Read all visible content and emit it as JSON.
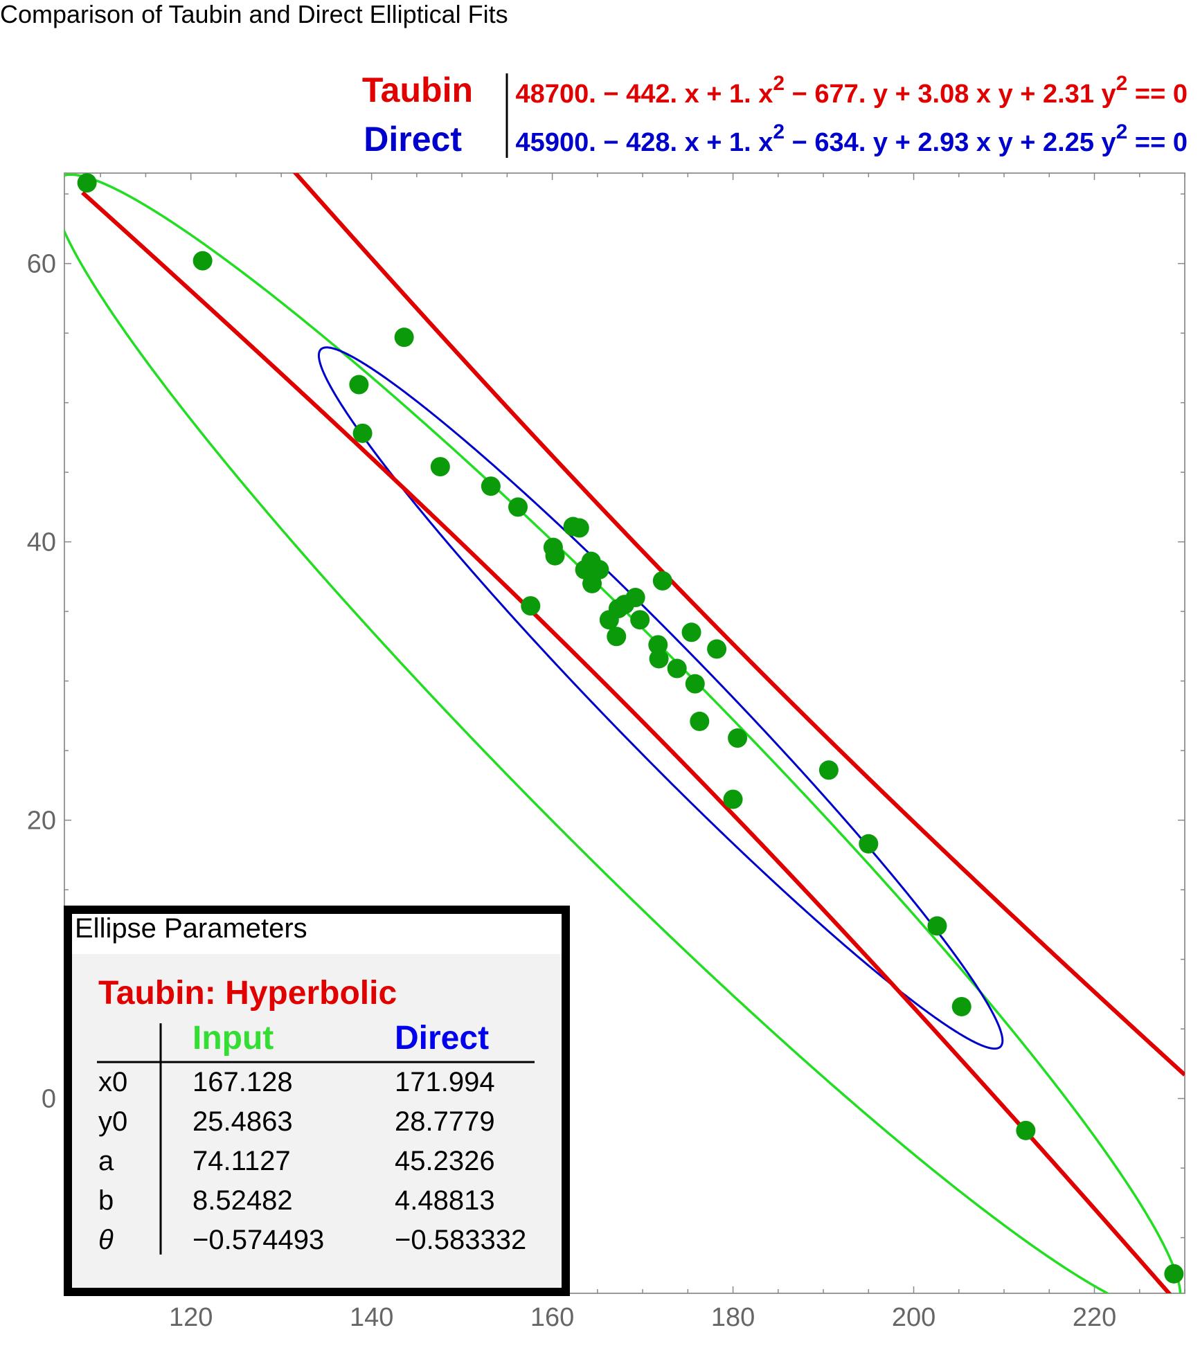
{
  "chart_data": {
    "type": "scatter",
    "title": "Comparison of Taubin and Direct Elliptical Fits",
    "xlabel": "",
    "ylabel": "",
    "xlim": [
      106,
      230
    ],
    "ylim": [
      -14,
      66.5
    ],
    "x_ticks": [
      120,
      140,
      160,
      180,
      200,
      220
    ],
    "y_ticks": [
      0,
      20,
      40,
      60
    ],
    "grid": false,
    "colors": {
      "points": "#0a9a0a",
      "taubin": "#e00000",
      "direct": "#0000cc",
      "input": "#22dd22",
      "axis": "#888888"
    },
    "equations": [
      {
        "name": "Taubin",
        "color": "#e00000",
        "parts": [
          "48700. − 442. x + 1. x",
          "2",
          " − 677. y + 3.08 x y + 2.31 y",
          "2",
          " == 0"
        ]
      },
      {
        "name": "Direct",
        "color": "#0000cc",
        "parts": [
          "45900. − 428. x + 1. x",
          "2",
          " − 634. y + 2.93 x y + 2.25 y",
          "2",
          " == 0"
        ]
      }
    ],
    "points": [
      [
        108.5,
        65.8
      ],
      [
        121.3,
        60.2
      ],
      [
        143.6,
        54.7
      ],
      [
        138.6,
        51.3
      ],
      [
        139.0,
        47.8
      ],
      [
        147.6,
        45.4
      ],
      [
        153.2,
        44.0
      ],
      [
        156.2,
        42.5
      ],
      [
        162.3,
        41.1
      ],
      [
        163.0,
        41.0
      ],
      [
        160.1,
        39.6
      ],
      [
        160.3,
        39.0
      ],
      [
        163.6,
        38.0
      ],
      [
        164.3,
        38.6
      ],
      [
        165.2,
        38.0
      ],
      [
        164.4,
        37.0
      ],
      [
        157.6,
        35.4
      ],
      [
        172.2,
        37.2
      ],
      [
        166.3,
        34.4
      ],
      [
        167.3,
        35.2
      ],
      [
        168.0,
        35.5
      ],
      [
        169.2,
        36.0
      ],
      [
        169.7,
        34.4
      ],
      [
        167.1,
        33.2
      ],
      [
        171.7,
        32.6
      ],
      [
        171.8,
        31.6
      ],
      [
        175.4,
        33.5
      ],
      [
        178.2,
        32.3
      ],
      [
        173.8,
        30.9
      ],
      [
        175.8,
        29.8
      ],
      [
        176.3,
        27.1
      ],
      [
        180.5,
        25.9
      ],
      [
        180.0,
        21.5
      ],
      [
        190.6,
        23.6
      ],
      [
        195.0,
        18.3
      ],
      [
        202.6,
        12.4
      ],
      [
        205.3,
        6.6
      ],
      [
        212.4,
        -2.3
      ],
      [
        228.8,
        -12.6
      ]
    ],
    "taubin": {
      "coef": [
        48700,
        -442,
        1,
        -677,
        3.08,
        2.31
      ]
    },
    "direct": {
      "x0": 171.994,
      "y0": 28.7779,
      "a": 45.2326,
      "b": 4.48813,
      "theta": -0.583332
    },
    "input": {
      "x0": 167.128,
      "y0": 25.4863,
      "a": 74.1127,
      "b": 8.52482,
      "theta": -0.574493
    }
  },
  "params_table": {
    "title": "Ellipse Parameters",
    "subtitle": "Taubin: Hyperbolic",
    "col_input": "Input",
    "col_direct": "Direct",
    "rows": [
      {
        "label": "x0",
        "input": "167.128",
        "direct": "171.994"
      },
      {
        "label": "y0",
        "input": "25.4863",
        "direct": "28.7779"
      },
      {
        "label": "a",
        "input": "74.1127",
        "direct": "45.2326"
      },
      {
        "label": "b",
        "input": "8.52482",
        "direct": "4.48813"
      },
      {
        "label": "θ",
        "input": "−0.574493",
        "direct": "−0.583332"
      }
    ]
  }
}
